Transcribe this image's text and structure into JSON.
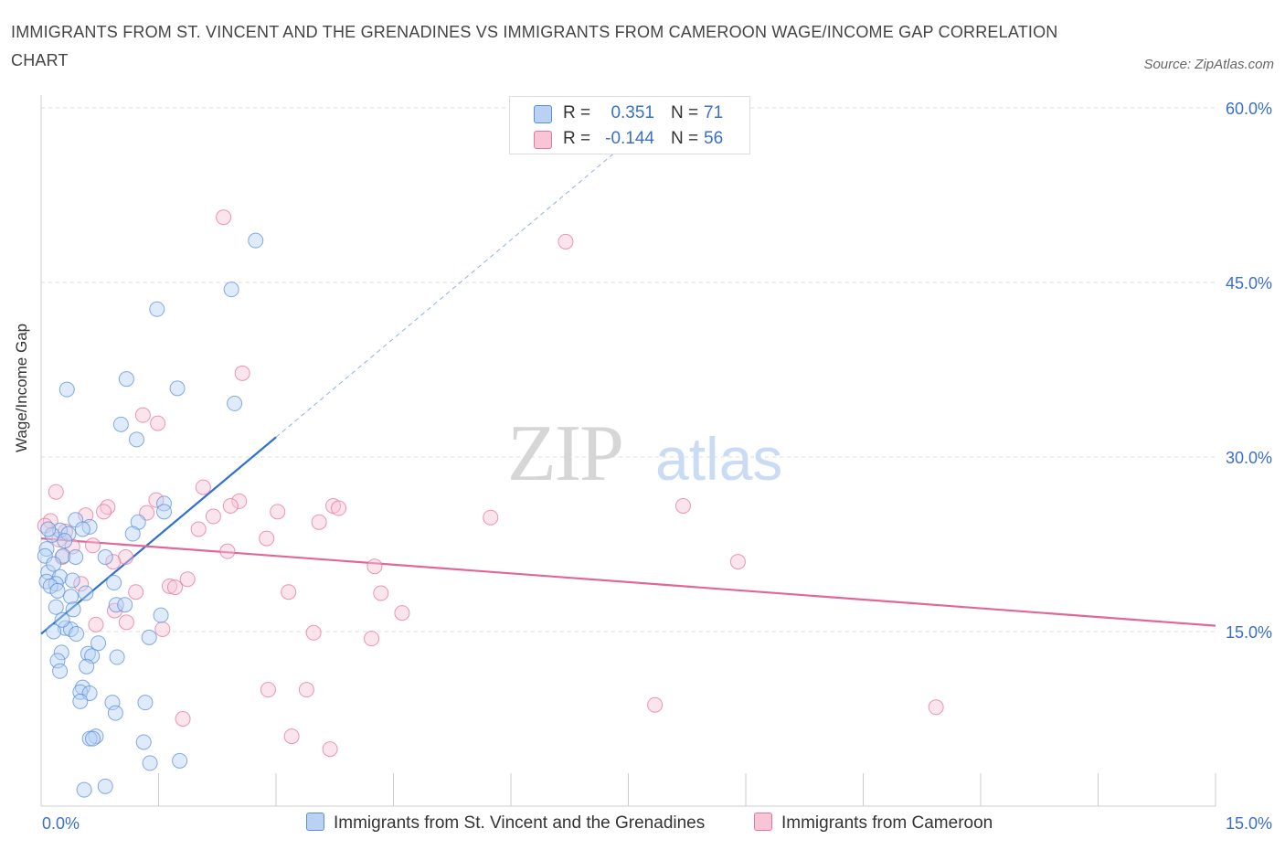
{
  "header": {
    "title": "IMMIGRANTS FROM ST. VINCENT AND THE GRENADINES VS IMMIGRANTS FROM CAMEROON WAGE/INCOME GAP CORRELATION CHART",
    "source": "Source: ZipAtlas.com"
  },
  "watermark": {
    "zip": "ZIP",
    "atlas": "atlas"
  },
  "legend": {
    "r_label": "R =",
    "n_label": "N =",
    "rows": [
      {
        "r": "0.351",
        "n": "71"
      },
      {
        "r": "-0.144",
        "n": "56"
      }
    ]
  },
  "chart_data": {
    "type": "scatter",
    "title": "IMMIGRANTS FROM ST. VINCENT AND THE GRENADINES VS IMMIGRANTS FROM CAMEROON WAGE/INCOME GAP CORRELATION CHART",
    "xlabel": "",
    "ylabel": "Wage/Income Gap",
    "xlim": [
      0,
      15
    ],
    "ylim": [
      0,
      60
    ],
    "x_tick_labels": [
      "0.0%",
      "15.0%"
    ],
    "y_tick_labels": [
      "15.0%",
      "30.0%",
      "45.0%",
      "60.0%"
    ],
    "y_ticks": [
      15,
      30,
      45,
      60
    ],
    "grid": true,
    "legend_position": "top-center",
    "colors": {
      "blue": "#5b8fd9",
      "blue_fill": "#b9d2f4",
      "pink": "#e8739c",
      "pink_fill": "#f7c5d6",
      "axis_text": "#3a6fcc"
    },
    "series": [
      {
        "name": "Immigrants from St. Vincent and the Grenadines",
        "color": "#5b8fd9",
        "trend": {
          "x": [
            0,
            3.0
          ],
          "y": [
            14.8,
            31.7
          ],
          "dashed_to": [
            7.3,
            56.0
          ]
        },
        "points": [
          [
            2.74,
            48.6
          ],
          [
            2.43,
            44.4
          ],
          [
            1.48,
            42.7
          ],
          [
            1.09,
            36.7
          ],
          [
            1.74,
            35.9
          ],
          [
            0.33,
            35.8
          ],
          [
            2.47,
            34.6
          ],
          [
            1.02,
            32.8
          ],
          [
            1.22,
            31.5
          ],
          [
            1.57,
            26.0
          ],
          [
            1.57,
            25.3
          ],
          [
            0.44,
            24.6
          ],
          [
            0.62,
            24.0
          ],
          [
            1.24,
            24.4
          ],
          [
            0.24,
            23.7
          ],
          [
            0.53,
            23.8
          ],
          [
            0.35,
            23.4
          ],
          [
            1.17,
            23.4
          ],
          [
            0.14,
            23.3
          ],
          [
            0.07,
            22.1
          ],
          [
            0.05,
            21.5
          ],
          [
            0.28,
            21.5
          ],
          [
            0.44,
            21.4
          ],
          [
            0.82,
            21.4
          ],
          [
            0.09,
            20.1
          ],
          [
            0.24,
            19.7
          ],
          [
            0.07,
            19.3
          ],
          [
            0.19,
            19.1
          ],
          [
            0.12,
            18.9
          ],
          [
            0.93,
            19.2
          ],
          [
            0.21,
            18.5
          ],
          [
            0.38,
            18.0
          ],
          [
            0.96,
            17.3
          ],
          [
            1.07,
            17.3
          ],
          [
            0.19,
            17.1
          ],
          [
            0.41,
            16.9
          ],
          [
            1.53,
            16.4
          ],
          [
            0.31,
            15.3
          ],
          [
            0.38,
            15.2
          ],
          [
            0.16,
            15.0
          ],
          [
            0.45,
            14.8
          ],
          [
            1.38,
            14.5
          ],
          [
            0.73,
            14.0
          ],
          [
            0.26,
            13.2
          ],
          [
            0.6,
            13.1
          ],
          [
            0.65,
            12.9
          ],
          [
            0.97,
            12.8
          ],
          [
            0.21,
            12.5
          ],
          [
            0.58,
            12.0
          ],
          [
            0.24,
            11.6
          ],
          [
            0.53,
            10.2
          ],
          [
            0.5,
            9.8
          ],
          [
            0.62,
            9.7
          ],
          [
            0.5,
            9.0
          ],
          [
            0.91,
            8.9
          ],
          [
            1.33,
            8.9
          ],
          [
            0.95,
            8.0
          ],
          [
            0.7,
            6.0
          ],
          [
            0.62,
            5.8
          ],
          [
            0.66,
            5.8
          ],
          [
            1.31,
            5.5
          ],
          [
            1.39,
            3.7
          ],
          [
            1.77,
            3.9
          ],
          [
            0.82,
            1.7
          ],
          [
            0.55,
            1.4
          ],
          [
            0.09,
            23.8
          ],
          [
            0.3,
            22.8
          ],
          [
            0.16,
            20.8
          ],
          [
            0.4,
            19.4
          ],
          [
            0.57,
            18.3
          ],
          [
            0.27,
            16.0
          ]
        ]
      },
      {
        "name": "Immigrants from Cameroon",
        "color": "#e8739c",
        "trend": {
          "x": [
            0,
            15
          ],
          "y": [
            23.0,
            15.5
          ]
        },
        "points": [
          [
            2.33,
            50.6
          ],
          [
            6.7,
            48.5
          ],
          [
            2.57,
            37.2
          ],
          [
            1.3,
            33.6
          ],
          [
            1.49,
            32.9
          ],
          [
            2.07,
            27.4
          ],
          [
            0.19,
            27.0
          ],
          [
            1.47,
            26.3
          ],
          [
            2.53,
            26.2
          ],
          [
            2.42,
            25.8
          ],
          [
            0.85,
            25.7
          ],
          [
            3.73,
            25.8
          ],
          [
            3.8,
            25.6
          ],
          [
            0.8,
            25.3
          ],
          [
            1.35,
            25.2
          ],
          [
            3.02,
            25.3
          ],
          [
            0.57,
            25.0
          ],
          [
            2.2,
            24.9
          ],
          [
            5.74,
            24.8
          ],
          [
            0.12,
            24.5
          ],
          [
            3.55,
            24.4
          ],
          [
            8.2,
            25.8
          ],
          [
            2.01,
            23.8
          ],
          [
            0.31,
            23.6
          ],
          [
            2.88,
            23.0
          ],
          [
            0.66,
            22.4
          ],
          [
            0.4,
            22.3
          ],
          [
            2.38,
            21.9
          ],
          [
            0.27,
            21.4
          ],
          [
            1.08,
            21.4
          ],
          [
            8.9,
            21.0
          ],
          [
            4.26,
            20.6
          ],
          [
            1.87,
            19.5
          ],
          [
            0.51,
            19.1
          ],
          [
            1.64,
            18.9
          ],
          [
            1.71,
            18.8
          ],
          [
            1.21,
            18.4
          ],
          [
            3.16,
            18.4
          ],
          [
            4.34,
            18.3
          ],
          [
            4.61,
            16.6
          ],
          [
            0.94,
            16.8
          ],
          [
            1.09,
            15.8
          ],
          [
            0.7,
            15.6
          ],
          [
            1.55,
            15.2
          ],
          [
            3.48,
            14.9
          ],
          [
            4.22,
            14.4
          ],
          [
            2.9,
            10.0
          ],
          [
            3.39,
            10.0
          ],
          [
            7.84,
            8.7
          ],
          [
            11.43,
            8.5
          ],
          [
            1.81,
            7.5
          ],
          [
            3.2,
            6.0
          ],
          [
            3.69,
            4.9
          ],
          [
            0.05,
            24.1
          ],
          [
            0.23,
            22.9
          ],
          [
            0.92,
            21.0
          ]
        ]
      }
    ]
  }
}
